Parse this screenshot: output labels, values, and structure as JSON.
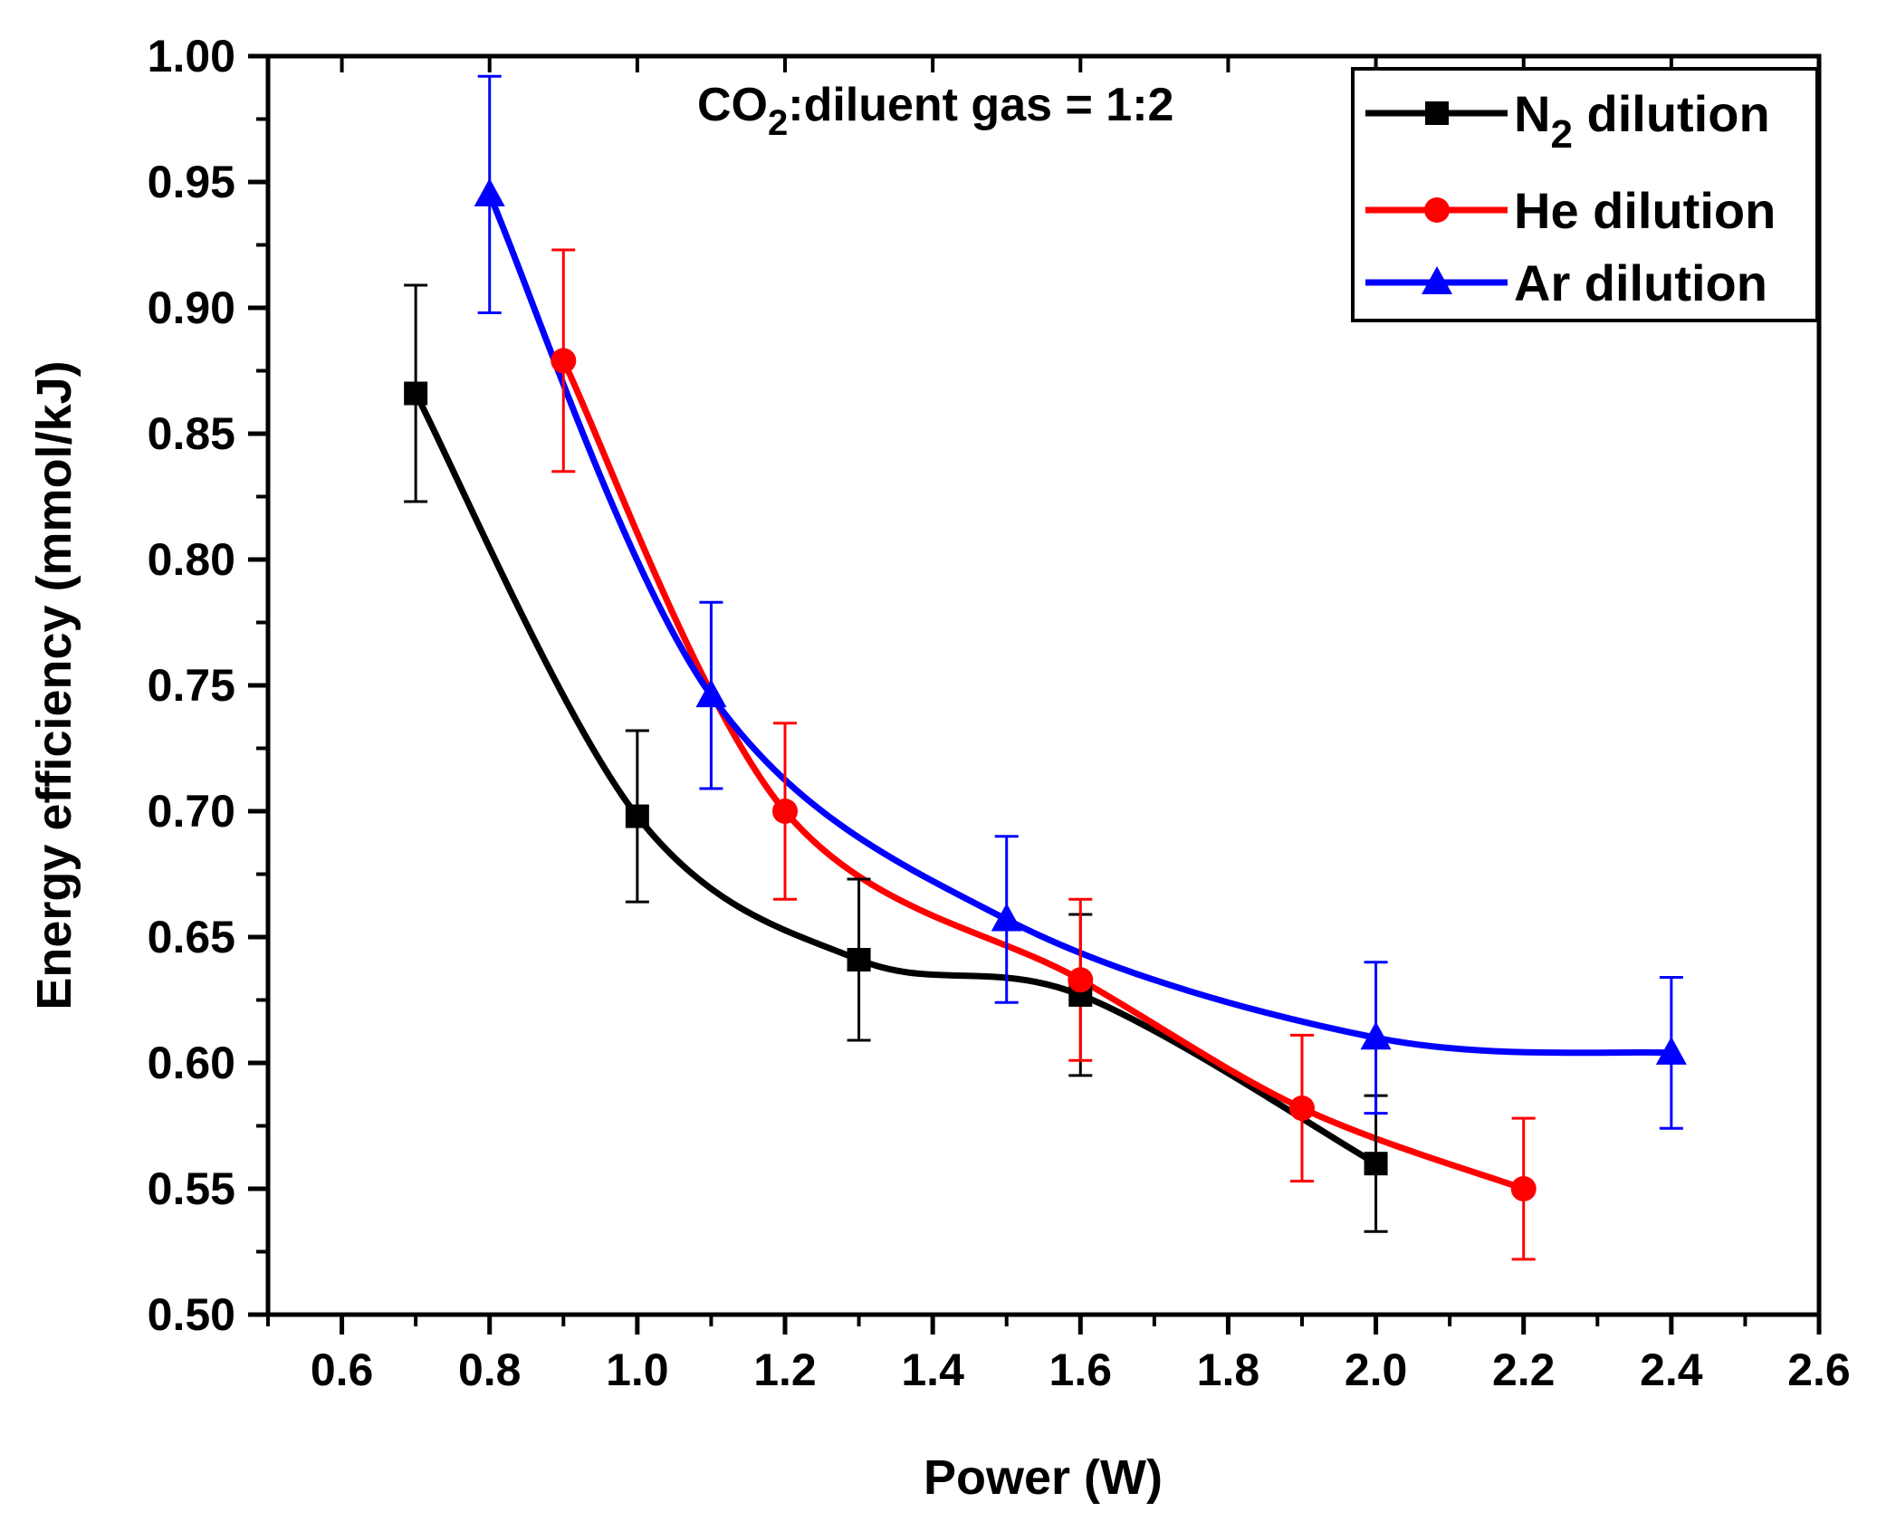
{
  "chart_data": {
    "type": "line",
    "title": "",
    "xlabel": "Power (W)",
    "ylabel": "Energy efficiency (mmol/kJ)",
    "xlim": [
      0.5,
      2.6
    ],
    "ylim": [
      0.5,
      1.0
    ],
    "x_ticks": [
      "0.6",
      "0.8",
      "1.0",
      "1.2",
      "1.4",
      "1.6",
      "1.8",
      "2.0",
      "2.2",
      "2.4",
      "2.6"
    ],
    "y_ticks": [
      "0.50",
      "0.55",
      "0.60",
      "0.65",
      "0.70",
      "0.75",
      "0.80",
      "0.85",
      "0.90",
      "0.95",
      "1.00"
    ],
    "annotation": {
      "prefix": "CO",
      "subscript": "2",
      "suffix": ":diluent gas = 1:2"
    },
    "legend_position": "top-right",
    "grid": false,
    "series": [
      {
        "name": "N2 dilution",
        "legend_main": "N",
        "legend_sub": "2",
        "legend_rest": " dilution",
        "color": "#000000",
        "marker": "square",
        "x": [
          0.7,
          1.0,
          1.3,
          1.6,
          2.0
        ],
        "y": [
          0.866,
          0.698,
          0.641,
          0.627,
          0.56
        ],
        "err": [
          0.043,
          0.034,
          0.032,
          0.032,
          0.027
        ]
      },
      {
        "name": "He dilution",
        "legend_main": "He dilution",
        "legend_sub": "",
        "legend_rest": "",
        "color": "#ff0000",
        "marker": "circle",
        "x": [
          0.9,
          1.2,
          1.6,
          1.9,
          2.2
        ],
        "y": [
          0.879,
          0.7,
          0.633,
          0.582,
          0.55
        ],
        "err": [
          0.044,
          0.035,
          0.032,
          0.029,
          0.028
        ]
      },
      {
        "name": "Ar dilution",
        "legend_main": "Ar dilution",
        "legend_sub": "",
        "legend_rest": "",
        "color": "#0000ff",
        "marker": "triangle",
        "x": [
          0.8,
          1.1,
          1.5,
          2.0,
          2.4
        ],
        "y": [
          0.945,
          0.746,
          0.657,
          0.61,
          0.604
        ],
        "err": [
          0.047,
          0.037,
          0.033,
          0.03,
          0.03
        ]
      }
    ]
  }
}
